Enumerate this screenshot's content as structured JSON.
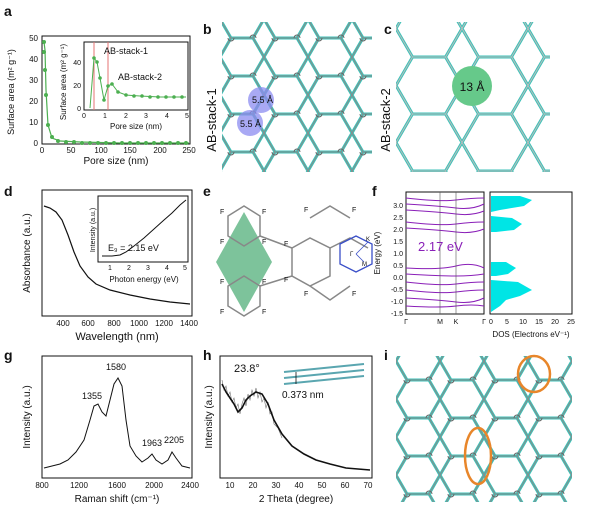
{
  "figure": {
    "panel_labels": [
      "a",
      "b",
      "c",
      "d",
      "e",
      "f",
      "g",
      "h",
      "i"
    ]
  },
  "panel_a": {
    "ylabel": "Surface area (m² g⁻¹)",
    "xlabel": "Pore size (nm)",
    "xticks": [
      "0",
      "50",
      "100",
      "150",
      "200",
      "250"
    ],
    "yticks": [
      "0",
      "10",
      "20",
      "30",
      "40",
      "50"
    ],
    "inset": {
      "ylabel": "Surface area (m² g⁻¹)",
      "xlabel": "Pore size (nm)",
      "xticks": [
        "0",
        "1",
        "2",
        "3",
        "4",
        "5"
      ],
      "yticks": [
        "0",
        "20",
        "40"
      ],
      "labels": [
        "AB-stack-1",
        "AB-stack-2"
      ]
    },
    "colors": {
      "series": "#4caf50"
    }
  },
  "panel_b": {
    "vertical_label": "AB-stack-1",
    "pore_labels": [
      "5.5 Å",
      "5.5 Å"
    ]
  },
  "panel_c": {
    "vertical_label": "AB-stack-2",
    "pore_label": "13 Å"
  },
  "panel_d": {
    "ylabel": "Absorbance (a.u.)",
    "xlabel": "Wavelength (nm)",
    "xticks": [
      "400",
      "600",
      "800",
      "1000",
      "1200",
      "1400"
    ],
    "inset": {
      "ylabel": "Intensity (a.u.)",
      "xlabel": "Photon energy (eV)",
      "xticks": [
        "1",
        "2",
        "3",
        "4",
        "5"
      ],
      "annotation": "E₉ = 2.15 eV"
    }
  },
  "panel_e": {
    "atom_label": "F",
    "k_labels": [
      "Γ",
      "K",
      "M"
    ]
  },
  "panel_f": {
    "band_ylabel": "Energy (eV)",
    "band_yticks": [
      "3.0",
      "2.5",
      "2.0",
      "1.5",
      "1.0",
      "0.5",
      "0.0",
      "-0.5",
      "-1.0",
      "-1.5"
    ],
    "band_xticks": [
      "Γ",
      "M",
      "K",
      "Γ"
    ],
    "gap_label": "2.17 eV",
    "dos_xlabel": "DOS (Electrons eV⁻¹)",
    "dos_xticks": [
      "0",
      "5",
      "10",
      "15",
      "20",
      "25"
    ],
    "colors": {
      "bands": "#8a1fb8",
      "dos": "#00e5e5"
    }
  },
  "panel_g": {
    "ylabel": "Intensity (a.u.)",
    "xlabel": "Raman shift (cm⁻¹)",
    "xticks": [
      "800",
      "1200",
      "1600",
      "2000",
      "2400"
    ],
    "peaks": [
      "1355",
      "1580",
      "1963",
      "2205"
    ]
  },
  "panel_h": {
    "ylabel": "Intensity (a.u.)",
    "xlabel": "2 Theta (degree)",
    "xticks": [
      "10",
      "20",
      "30",
      "40",
      "50",
      "60",
      "70"
    ],
    "peak": "23.8°",
    "spacing": "0.373 nm"
  },
  "chart_data": [
    {
      "type": "scatter",
      "id": "a",
      "x": [
        0.5,
        1,
        2,
        3,
        4,
        5,
        10,
        20,
        50,
        100,
        150,
        200,
        250
      ],
      "values": [
        47,
        44,
        20,
        8,
        3,
        2,
        1,
        0.5,
        0.3,
        0.2,
        0.2,
        0.1,
        0.1
      ],
      "xlabel": "Pore size (nm)",
      "ylabel": "Surface area (m² g⁻¹)",
      "ylim": [
        0,
        50
      ]
    },
    {
      "type": "line",
      "id": "d",
      "x": [
        300,
        400,
        500,
        600,
        700,
        800,
        1000,
        1200,
        1400,
        1500
      ],
      "values": [
        0.95,
        0.88,
        0.75,
        0.55,
        0.38,
        0.28,
        0.18,
        0.14,
        0.11,
        0.1
      ],
      "xlabel": "Wavelength (nm)",
      "ylabel": "Absorbance (a.u.)"
    },
    {
      "type": "line",
      "id": "g",
      "x": [
        800,
        1000,
        1200,
        1355,
        1450,
        1580,
        1700,
        1800,
        1963,
        2100,
        2205,
        2300,
        2400
      ],
      "values": [
        0.12,
        0.15,
        0.35,
        0.62,
        0.55,
        0.85,
        0.35,
        0.2,
        0.25,
        0.18,
        0.3,
        0.15,
        0.12
      ],
      "xlabel": "Raman shift (cm⁻¹)",
      "ylabel": "Intensity (a.u.)"
    },
    {
      "type": "line",
      "id": "h",
      "x": [
        5,
        10,
        15,
        20,
        23.8,
        28,
        35,
        45,
        55,
        70
      ],
      "values": [
        0.7,
        0.6,
        0.5,
        0.68,
        0.78,
        0.55,
        0.35,
        0.22,
        0.15,
        0.1
      ],
      "xlabel": "2 Theta (degree)",
      "ylabel": "Intensity (a.u.)"
    }
  ]
}
